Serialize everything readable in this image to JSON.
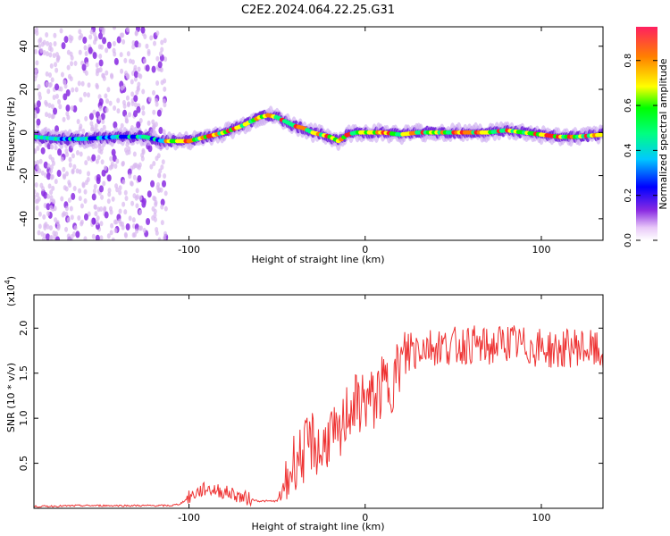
{
  "title": "C2E2.2024.064.22.25.G31",
  "colors": {
    "snr_line": "#ee3333",
    "axis": "#000000",
    "background": "#ffffff"
  },
  "chart_data": [
    {
      "type": "heatmap",
      "xlabel": "Height of straight line (km)",
      "ylabel": "Frequency (Hz)",
      "xlim": [
        -188,
        135
      ],
      "ylim": [
        -50,
        49
      ],
      "xticks": [
        -100,
        0,
        100
      ],
      "yticks": [
        -40,
        -20,
        0,
        20,
        40
      ],
      "grid": false,
      "colorbar": {
        "label": "Normalized spectral amplitude",
        "range": [
          0,
          0.95
        ],
        "ticks": [
          0.0,
          0.2,
          0.4,
          0.6,
          0.8
        ],
        "colormap": "rainbow"
      },
      "ridge": {
        "x": [
          -188,
          -175,
          -160,
          -140,
          -125,
          -115,
          -100,
          -90,
          -80,
          -70,
          -60,
          -55,
          -50,
          -45,
          -40,
          -35,
          -30,
          -25,
          -20,
          -15,
          -10,
          -5,
          0,
          10,
          20,
          30,
          40,
          50,
          60,
          70,
          80,
          90,
          100,
          110,
          120,
          135
        ],
        "y": [
          -2,
          -3,
          -3,
          -2,
          -2,
          -4,
          -4,
          -2,
          0,
          3,
          7,
          8,
          7,
          5,
          3,
          2,
          0,
          -1,
          -2,
          -4,
          -1,
          0,
          0,
          0,
          -1,
          0,
          0,
          0,
          0,
          0,
          1,
          0,
          -1,
          -2,
          -2,
          -1
        ]
      },
      "noise_region_x": [
        -188,
        -113
      ]
    },
    {
      "type": "line",
      "xlabel": "Height of straight line (km)",
      "ylabel": "SNR (10 * v/v)",
      "y_scale_label": "(x10",
      "y_scale_exp": "4",
      "y_scale_close": ")",
      "xlim": [
        -188,
        135
      ],
      "ylim": [
        0,
        2.37
      ],
      "xticks": [
        -100,
        0,
        100
      ],
      "yticks": [
        0.5,
        1.0,
        1.5,
        2.0
      ],
      "grid": false,
      "series": [
        {
          "x": [
            -188,
            -160,
            -150,
            -140,
            -120,
            -110,
            -105,
            -100,
            -95,
            -90,
            -85,
            -80,
            -75,
            -70,
            -65,
            -60,
            -55,
            -50,
            -45,
            -40,
            -35,
            -30,
            -25,
            -20,
            -15,
            -10,
            -5,
            0,
            5,
            10,
            15,
            20,
            25,
            30,
            40,
            50,
            60,
            70,
            80,
            90,
            100,
            110,
            120,
            130,
            135
          ],
          "y": [
            0.02,
            0.03,
            0.03,
            0.03,
            0.03,
            0.03,
            0.05,
            0.12,
            0.18,
            0.22,
            0.2,
            0.18,
            0.16,
            0.12,
            0.1,
            0.08,
            0.08,
            0.08,
            0.25,
            0.55,
            0.6,
            0.75,
            0.6,
            0.85,
            0.7,
            1.1,
            1.15,
            1.2,
            1.2,
            1.35,
            1.4,
            1.6,
            1.75,
            1.8,
            1.8,
            1.8,
            1.82,
            1.78,
            1.85,
            1.8,
            1.78,
            1.75,
            1.8,
            1.75,
            1.7
          ]
        }
      ]
    }
  ]
}
